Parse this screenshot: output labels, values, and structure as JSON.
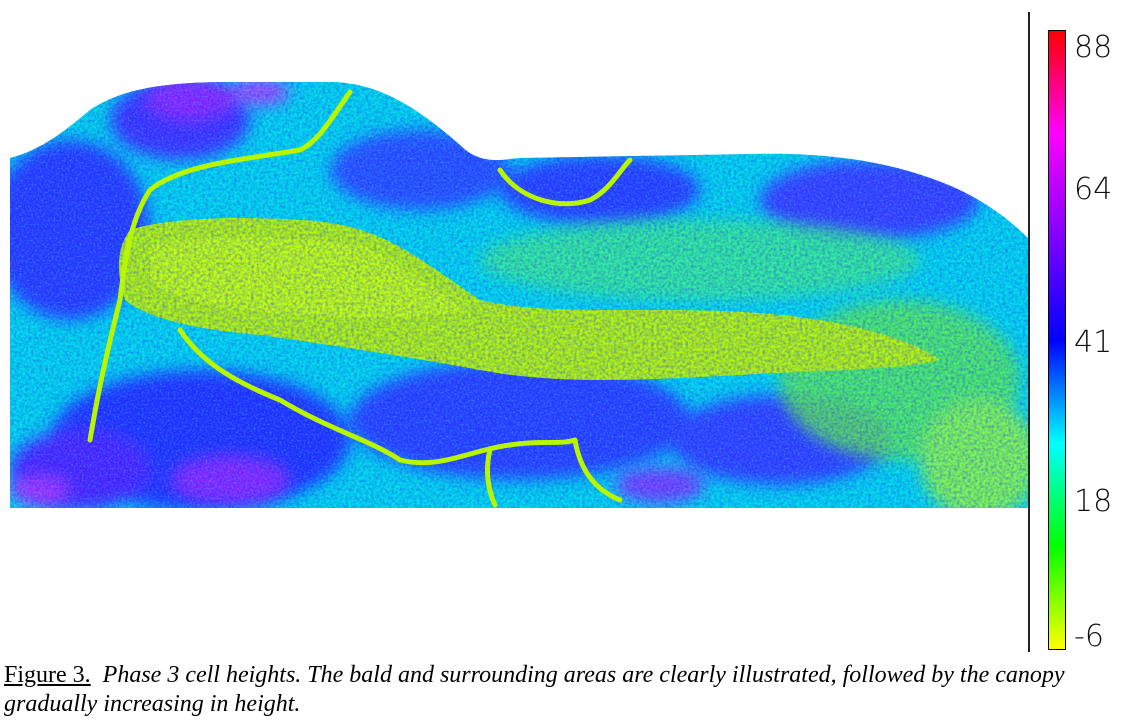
{
  "chart_data": {
    "type": "heatmap",
    "title": "",
    "xlabel": "",
    "ylabel": "",
    "colorbar": {
      "min": -6,
      "max": 88,
      "ticks": [
        88,
        64,
        41,
        18,
        -6
      ],
      "tick_labels": [
        "88",
        "64",
        "41",
        "18",
        "-6"
      ],
      "colors": [
        "#ff0000",
        "#ff00ff",
        "#8000ff",
        "#0000ff",
        "#00ffff",
        "#00ff00",
        "#ffff00"
      ]
    },
    "palette": {
      "low": "#c8ff00",
      "low_mid": "#22ee22",
      "mid": "#00e8ff",
      "high": "#2020ff",
      "very_high": "#a020ff"
    }
  },
  "caption": {
    "label": "Figure 3.",
    "text": "Phase 3 cell heights.  The bald and surrounding areas are clearly illustrated, followed by the canopy gradually increasing in height."
  }
}
